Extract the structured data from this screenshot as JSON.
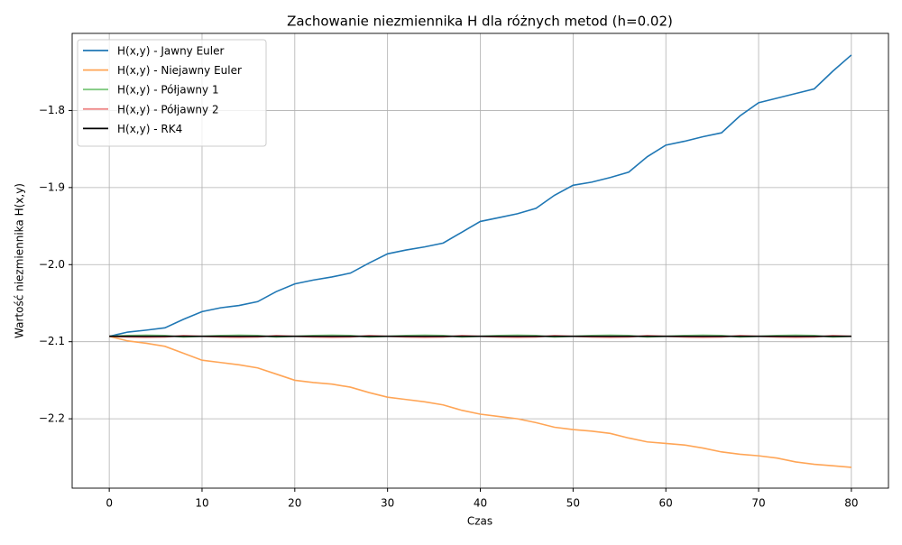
{
  "chart_data": {
    "type": "line",
    "title": "Zachowanie niezmiennika H dla różnych metod (h=0.02)",
    "xlabel": "Czas",
    "ylabel": "Wartość niezmiennika H(x,y)",
    "x": [
      0,
      2,
      4,
      6,
      8,
      10,
      12,
      14,
      16,
      18,
      20,
      22,
      24,
      26,
      28,
      30,
      32,
      34,
      36,
      38,
      40,
      42,
      44,
      46,
      48,
      50,
      52,
      54,
      56,
      58,
      60,
      62,
      64,
      66,
      68,
      70,
      72,
      74,
      76,
      78,
      80
    ],
    "series": [
      {
        "name": "H(x,y) - Jawny Euler",
        "color": "#1f77b4",
        "values": [
          -2.093,
          -2.0875,
          -2.085,
          -2.082,
          -2.071,
          -2.061,
          -2.056,
          -2.053,
          -2.048,
          -2.035,
          -2.025,
          -2.02,
          -2.016,
          -2.011,
          -1.998,
          -1.986,
          -1.981,
          -1.977,
          -1.972,
          -1.958,
          -1.944,
          -1.939,
          -1.934,
          -1.927,
          -1.91,
          -1.897,
          -1.893,
          -1.887,
          -1.88,
          -1.86,
          -1.845,
          -1.84,
          -1.834,
          -1.829,
          -1.807,
          -1.79,
          -1.784,
          -1.778,
          -1.772,
          -1.749,
          -1.728
        ]
      },
      {
        "name": "H(x,y) - Niejawny Euler",
        "color": "#ffa556",
        "values": [
          -2.093,
          -2.099,
          -2.102,
          -2.106,
          -2.115,
          -2.124,
          -2.127,
          -2.13,
          -2.134,
          -2.142,
          -2.15,
          -2.153,
          -2.155,
          -2.159,
          -2.166,
          -2.172,
          -2.175,
          -2.178,
          -2.182,
          -2.189,
          -2.194,
          -2.197,
          -2.2,
          -2.205,
          -2.211,
          -2.214,
          -2.216,
          -2.219,
          -2.225,
          -2.23,
          -2.232,
          -2.234,
          -2.238,
          -2.243,
          -2.246,
          -2.248,
          -2.251,
          -2.256,
          -2.259,
          -2.261,
          -2.263
        ]
      },
      {
        "name": "H(x,y) - Półjawny 1",
        "color": "#7fc97f",
        "values": [
          -2.093,
          -2.092,
          -2.0915,
          -2.092,
          -2.094,
          -2.093,
          -2.092,
          -2.0915,
          -2.092,
          -2.094,
          -2.093,
          -2.092,
          -2.0915,
          -2.092,
          -2.094,
          -2.093,
          -2.092,
          -2.0915,
          -2.092,
          -2.094,
          -2.093,
          -2.092,
          -2.0915,
          -2.092,
          -2.094,
          -2.093,
          -2.092,
          -2.0915,
          -2.092,
          -2.094,
          -2.093,
          -2.092,
          -2.0915,
          -2.092,
          -2.094,
          -2.093,
          -2.092,
          -2.0915,
          -2.092,
          -2.094,
          -2.093
        ]
      },
      {
        "name": "H(x,y) - Półjawny 2",
        "color": "#ee8a8a",
        "values": [
          -2.093,
          -2.094,
          -2.0945,
          -2.094,
          -2.092,
          -2.093,
          -2.094,
          -2.0945,
          -2.094,
          -2.092,
          -2.093,
          -2.094,
          -2.0945,
          -2.094,
          -2.092,
          -2.093,
          -2.094,
          -2.0945,
          -2.094,
          -2.092,
          -2.093,
          -2.094,
          -2.0945,
          -2.094,
          -2.092,
          -2.093,
          -2.094,
          -2.0945,
          -2.094,
          -2.092,
          -2.093,
          -2.094,
          -2.0945,
          -2.094,
          -2.092,
          -2.093,
          -2.094,
          -2.0945,
          -2.094,
          -2.092,
          -2.093
        ]
      },
      {
        "name": "H(x,y) - RK4",
        "color": "#000000",
        "values": [
          -2.093,
          -2.093,
          -2.093,
          -2.093,
          -2.093,
          -2.093,
          -2.093,
          -2.093,
          -2.093,
          -2.093,
          -2.093,
          -2.093,
          -2.093,
          -2.093,
          -2.093,
          -2.093,
          -2.093,
          -2.093,
          -2.093,
          -2.093,
          -2.093,
          -2.093,
          -2.093,
          -2.093,
          -2.093,
          -2.093,
          -2.093,
          -2.093,
          -2.093,
          -2.093,
          -2.093,
          -2.093,
          -2.093,
          -2.093,
          -2.093,
          -2.093,
          -2.093,
          -2.093,
          -2.093,
          -2.093,
          -2.093
        ]
      }
    ],
    "xlim": [
      -4,
      84
    ],
    "xticks": [
      0,
      10,
      20,
      30,
      40,
      50,
      60,
      70,
      80
    ],
    "ylim": [
      -2.29,
      -1.7
    ],
    "yticks": [
      {
        "value": -2.2,
        "label": "−2.2"
      },
      {
        "value": -2.1,
        "label": "−2.1"
      },
      {
        "value": -2.0,
        "label": "−2.0"
      },
      {
        "value": -1.9,
        "label": "−1.9"
      },
      {
        "value": -1.8,
        "label": "−1.8"
      }
    ],
    "grid": true,
    "legend": "upper left"
  }
}
